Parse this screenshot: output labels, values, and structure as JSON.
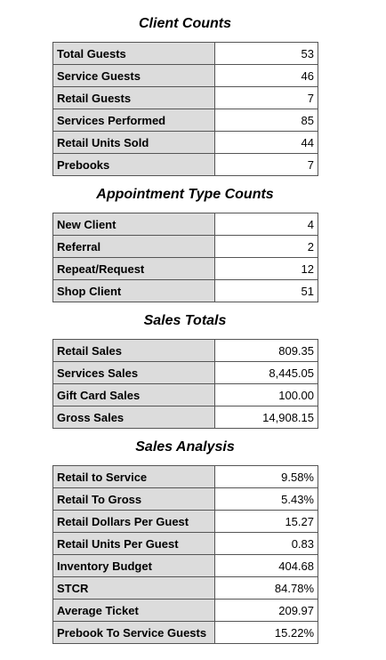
{
  "sections": [
    {
      "title": "Client Counts",
      "rows": [
        [
          "Total Guests",
          "53"
        ],
        [
          "Service Guests",
          "46"
        ],
        [
          "Retail Guests",
          "7"
        ],
        [
          "Services Performed",
          "85"
        ],
        [
          "Retail Units Sold",
          "44"
        ],
        [
          "Prebooks",
          "7"
        ]
      ]
    },
    {
      "title": "Appointment Type Counts",
      "rows": [
        [
          "New Client",
          "4"
        ],
        [
          "Referral",
          "2"
        ],
        [
          "Repeat/Request",
          "12"
        ],
        [
          "Shop Client",
          "51"
        ]
      ]
    },
    {
      "title": "Sales Totals",
      "rows": [
        [
          "Retail Sales",
          "809.35"
        ],
        [
          "Services Sales",
          "8,445.05"
        ],
        [
          "Gift Card Sales",
          "100.00"
        ],
        [
          "Gross Sales",
          "14,908.15"
        ]
      ]
    },
    {
      "title": "Sales Analysis",
      "rows": [
        [
          "Retail to Service",
          "9.58%"
        ],
        [
          "Retail To Gross",
          "5.43%"
        ],
        [
          "Retail Dollars Per Guest",
          "15.27"
        ],
        [
          "Retail Units Per Guest",
          "0.83"
        ],
        [
          "Inventory Budget",
          "404.68"
        ],
        [
          "STCR",
          "84.78%"
        ],
        [
          "Average Ticket",
          "209.97"
        ],
        [
          "Prebook To Service Guests",
          "15.22%"
        ]
      ]
    }
  ]
}
